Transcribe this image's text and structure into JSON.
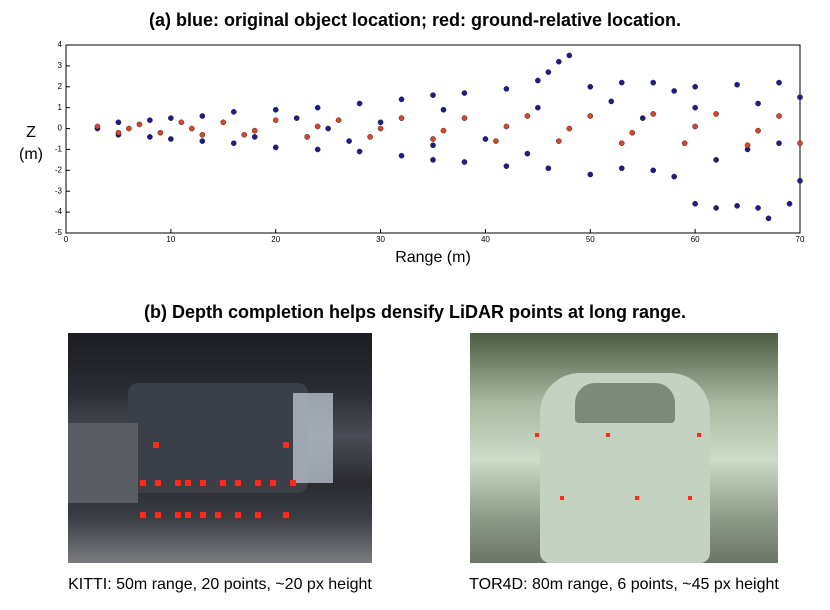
{
  "chart_data": {
    "type": "scatter",
    "title": "(a) blue: original object location; red: ground-relative location.",
    "xlabel": "Range (m)",
    "ylabel": "Z (m)",
    "xlim": [
      0,
      70
    ],
    "xticks": [
      0,
      10,
      20,
      30,
      40,
      50,
      60,
      70
    ],
    "ylim": [
      -5,
      4
    ],
    "yticks": [
      -5,
      -4,
      -3,
      -2,
      -1,
      0,
      1,
      2,
      3,
      4
    ],
    "series": [
      {
        "color": "#1c1c8f",
        "x": [
          3,
          5,
          5,
          8,
          8,
          10,
          10,
          13,
          13,
          16,
          16,
          20,
          20,
          24,
          24,
          28,
          28,
          32,
          32,
          35,
          35,
          38,
          38,
          42,
          42,
          45,
          46,
          47,
          48,
          46,
          50,
          50,
          53,
          53,
          56,
          56,
          58,
          58,
          60,
          60,
          62,
          64,
          66,
          67,
          69,
          64,
          68,
          70,
          70,
          55,
          40,
          30,
          65,
          25,
          45,
          35,
          60,
          68,
          22,
          18,
          44,
          52,
          62,
          66,
          36,
          27
        ],
        "y": [
          0,
          0.3,
          -0.3,
          0.4,
          -0.4,
          0.5,
          -0.5,
          0.6,
          -0.6,
          0.8,
          -0.7,
          0.9,
          -0.9,
          1.0,
          -1.0,
          1.2,
          -1.1,
          1.4,
          -1.3,
          1.6,
          -1.5,
          1.7,
          -1.6,
          1.9,
          -1.8,
          2.3,
          2.7,
          3.2,
          3.5,
          -1.9,
          2.0,
          -2.2,
          2.2,
          -1.9,
          2.2,
          -2.0,
          1.8,
          -2.3,
          2.0,
          -3.6,
          -3.8,
          -3.7,
          -3.8,
          -4.3,
          -3.6,
          2.1,
          2.2,
          1.5,
          -2.5,
          0.5,
          -0.5,
          0.3,
          -1.0,
          0,
          1.0,
          -0.8,
          1.0,
          -0.7,
          0.5,
          -0.4,
          -1.2,
          1.3,
          -1.5,
          1.2,
          0.9,
          -0.6
        ]
      },
      {
        "color": "#d9452b",
        "x": [
          3,
          5,
          7,
          9,
          11,
          13,
          15,
          17,
          20,
          23,
          26,
          29,
          32,
          35,
          38,
          41,
          44,
          47,
          50,
          53,
          56,
          59,
          62,
          65,
          68,
          70,
          6,
          12,
          18,
          24,
          30,
          36,
          42,
          48,
          54,
          60,
          66
        ],
        "y": [
          0.1,
          -0.2,
          0.2,
          -0.2,
          0.3,
          -0.3,
          0.3,
          -0.3,
          0.4,
          -0.4,
          0.4,
          -0.4,
          0.5,
          -0.5,
          0.5,
          -0.6,
          0.6,
          -0.6,
          0.6,
          -0.7,
          0.7,
          -0.7,
          0.7,
          -0.8,
          0.6,
          -0.7,
          0,
          0,
          -0.1,
          0.1,
          0,
          -0.1,
          0.1,
          0,
          -0.2,
          0.1,
          -0.1
        ]
      }
    ]
  },
  "panel_b": {
    "title": "(b) Depth completion helps densify LiDAR points at long range.",
    "images": [
      {
        "caption": "KITTI: 50m range, 20 points, ~20 px height"
      },
      {
        "caption": "TOR4D: 80m range, 6 points, ~45 px height"
      }
    ]
  }
}
